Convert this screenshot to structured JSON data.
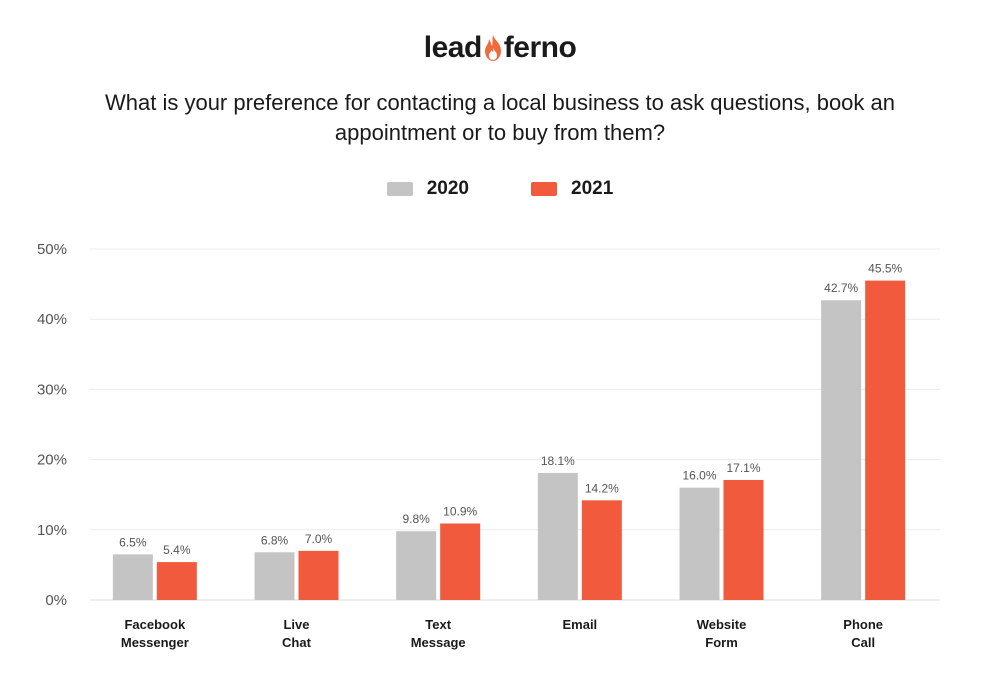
{
  "logo": {
    "left": "lead",
    "right": "ferno"
  },
  "question": "What is your preference for contacting a local business to ask questions, book an appointment or to buy from them?",
  "colors": {
    "s2020": "#c4c4c4",
    "s2021": "#f15a3c",
    "flame": "#f2693b",
    "grid": "#ececec"
  },
  "chart_data": {
    "type": "bar",
    "title": "What is your preference for contacting a local business to ask questions, book an appointment or to buy from them?",
    "categories": [
      [
        "Facebook",
        "Messenger"
      ],
      [
        "Live",
        "Chat"
      ],
      [
        "Text",
        "Message"
      ],
      [
        "Email"
      ],
      [
        "Website",
        "Form"
      ],
      [
        "Phone",
        "Call"
      ]
    ],
    "series": [
      {
        "name": "2020",
        "values": [
          6.5,
          6.8,
          9.8,
          18.1,
          16.0,
          42.7
        ],
        "labels": [
          "6.5%",
          "6.8%",
          "9.8%",
          "18.1%",
          "16.0%",
          "42.7%"
        ]
      },
      {
        "name": "2021",
        "values": [
          5.4,
          7.0,
          10.9,
          14.2,
          17.1,
          45.5
        ],
        "labels": [
          "5.4%",
          "7.0%",
          "10.9%",
          "14.2%",
          "17.1%",
          "45.5%"
        ]
      }
    ],
    "ylim": [
      0,
      50
    ],
    "yticks": [
      "0%",
      "10%",
      "20%",
      "30%",
      "40%",
      "50%"
    ],
    "ytick_values": [
      0,
      10,
      20,
      30,
      40,
      50
    ],
    "grid": true,
    "legend_position": "top-center",
    "xlabel": "",
    "ylabel": ""
  }
}
